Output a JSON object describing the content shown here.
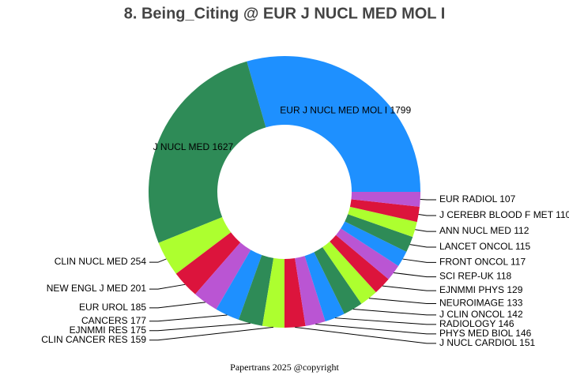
{
  "chart_data": {
    "type": "donut",
    "title": "8. Being_Citing @ EUR J NUCL MED MOL I",
    "footer": "Papertrans 2025 @copyright",
    "categories": [
      "EUR J NUCL MED MOL I",
      "J NUCL MED",
      "CLIN NUCL MED",
      "NEW ENGL J MED",
      "EUR UROL",
      "CANCERS",
      "EJNMMI RES",
      "CLIN CANCER RES",
      "J NUCL CARDIOL",
      "PHYS MED BIOL",
      "RADIOLOGY",
      "J CLIN ONCOL",
      "NEUROIMAGE",
      "EJNMMI PHYS",
      "SCI REP-UK",
      "FRONT ONCOL",
      "LANCET ONCOL",
      "ANN NUCL MED",
      "J CEREBR BLOOD F MET",
      "EUR RADIOL"
    ],
    "values": [
      1799,
      1627,
      254,
      201,
      185,
      177,
      175,
      159,
      151,
      146,
      146,
      142,
      133,
      129,
      118,
      117,
      115,
      112,
      110,
      107
    ],
    "colors": [
      "#1E90FF",
      "#2E8B57",
      "#ADFF2F",
      "#DC143C",
      "#BA55D3"
    ]
  }
}
